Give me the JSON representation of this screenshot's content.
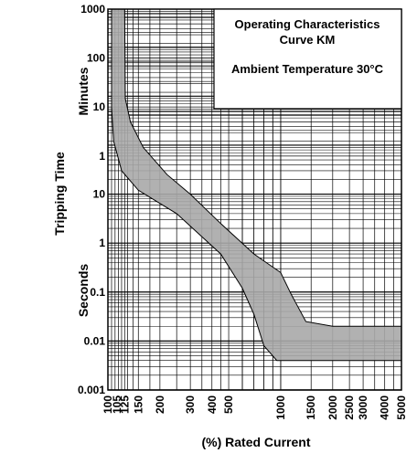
{
  "chart_data": {
    "type": "area",
    "title": "Operating Characteristics Curve KM",
    "subtitle": "Ambient Temperature 30°C",
    "xlabel": "(%) Rated Current",
    "ylabel": "Tripping Time",
    "y_unit_labels": {
      "upper": "Minutes",
      "lower": "Seconds"
    },
    "x_scale": "log",
    "y_scale": "log",
    "grid": true,
    "legend": "none",
    "x_ticks": [
      {
        "value": 100,
        "label": "100"
      },
      {
        "value": 105,
        "label": "105"
      },
      {
        "value": 125,
        "label": "125"
      },
      {
        "value": 150,
        "label": "150"
      },
      {
        "value": 200,
        "label": "200"
      },
      {
        "value": 300,
        "label": "300"
      },
      {
        "value": 400,
        "label": "400"
      },
      {
        "value": 500,
        "label": "500"
      },
      {
        "value": 1000,
        "label": "1000"
      },
      {
        "value": 1500,
        "label": "1500"
      },
      {
        "value": 2000,
        "label": "2000"
      },
      {
        "value": 2500,
        "label": "2500"
      },
      {
        "value": 3000,
        "label": "3000"
      },
      {
        "value": 4000,
        "label": "4000"
      },
      {
        "value": 5000,
        "label": "5000"
      }
    ],
    "y_ticks_minutes": [
      {
        "value": 1000,
        "label": "1000"
      },
      {
        "value": 100,
        "label": "100"
      },
      {
        "value": 10,
        "label": "10"
      },
      {
        "value": 1,
        "label": "1"
      }
    ],
    "y_ticks_seconds": [
      {
        "value": 10,
        "label": "10"
      },
      {
        "value": 1,
        "label": "1"
      },
      {
        "value": 0.1,
        "label": "0.1"
      },
      {
        "value": 0.01,
        "label": "0.01"
      },
      {
        "value": 0.001,
        "label": "0.001"
      }
    ],
    "band_color": "#a8a8a8",
    "series": [
      {
        "points_upper": [
          {
            "x": 125,
            "t_sec": 60000
          },
          {
            "x": 126,
            "t_sec": 900
          },
          {
            "x": 135,
            "t_sec": 300
          },
          {
            "x": 160,
            "t_sec": 90
          },
          {
            "x": 220,
            "t_sec": 25
          },
          {
            "x": 300,
            "t_sec": 10
          },
          {
            "x": 450,
            "t_sec": 2.5
          },
          {
            "x": 700,
            "t_sec": 0.6
          },
          {
            "x": 1000,
            "t_sec": 0.25
          },
          {
            "x": 1150,
            "t_sec": 0.09
          },
          {
            "x": 1400,
            "t_sec": 0.025
          },
          {
            "x": 2000,
            "t_sec": 0.02
          },
          {
            "x": 5000,
            "t_sec": 0.02
          }
        ],
        "points_lower": [
          {
            "x": 105,
            "t_sec": 60000
          },
          {
            "x": 105,
            "t_sec": 600
          },
          {
            "x": 108,
            "t_sec": 120
          },
          {
            "x": 120,
            "t_sec": 30
          },
          {
            "x": 150,
            "t_sec": 12
          },
          {
            "x": 250,
            "t_sec": 4
          },
          {
            "x": 450,
            "t_sec": 0.6
          },
          {
            "x": 600,
            "t_sec": 0.12
          },
          {
            "x": 700,
            "t_sec": 0.035
          },
          {
            "x": 800,
            "t_sec": 0.008
          },
          {
            "x": 950,
            "t_sec": 0.004
          },
          {
            "x": 5000,
            "t_sec": 0.004
          }
        ]
      }
    ]
  }
}
